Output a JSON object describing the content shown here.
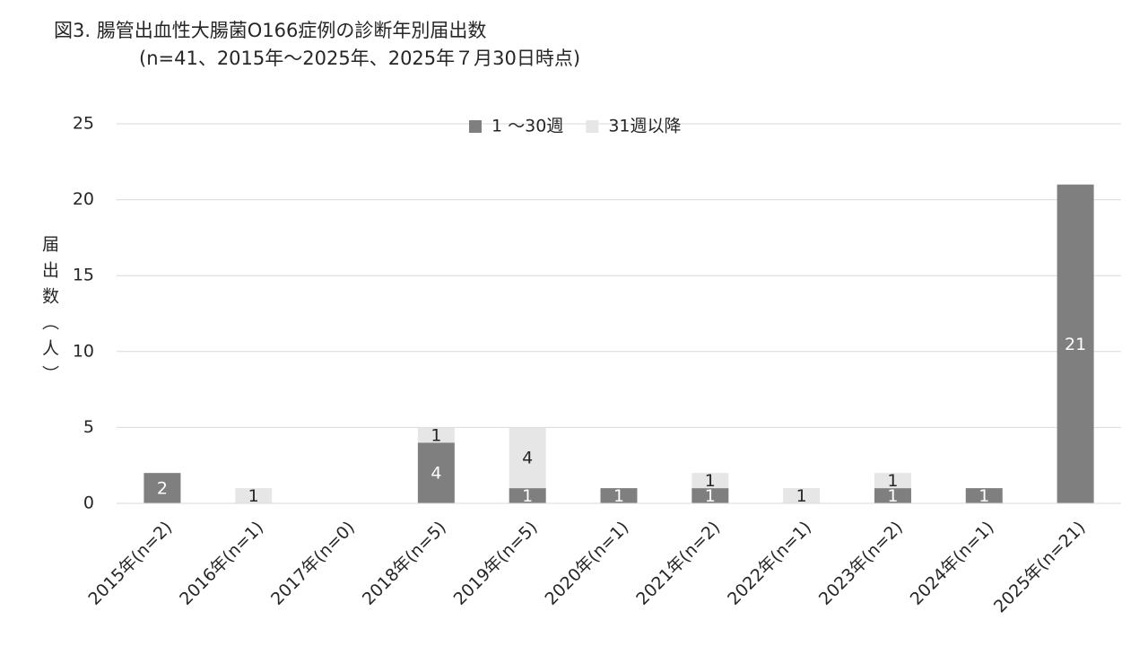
{
  "chart_data": {
    "type": "stacked-bar",
    "title": "図3. 腸管出血性大腸菌O166症例の診断年別届出数",
    "subtitle": "(n=41、2015年～2025年、2025年７月30日時点)",
    "y_label": "届出数（人）",
    "categories": [
      "2015年(n=2)",
      "2016年(n=1)",
      "2017年(n=0)",
      "2018年(n=5)",
      "2019年(n=5)",
      "2020年(n=1)",
      "2021年(n=2)",
      "2022年(n=1)",
      "2023年(n=2)",
      "2024年(n=1)",
      "2025年(n=21)"
    ],
    "series": [
      {
        "name": "1 ～30週",
        "color": "#7f7f7f",
        "values": [
          2,
          0,
          0,
          4,
          1,
          1,
          1,
          0,
          1,
          1,
          21
        ]
      },
      {
        "name": "31週以降",
        "color": "#e7e6e6",
        "values": [
          0,
          1,
          0,
          1,
          4,
          0,
          1,
          1,
          1,
          0,
          0
        ]
      }
    ],
    "ylim": [
      0,
      25
    ],
    "yticks": [
      0,
      5,
      10,
      15,
      20,
      25
    ],
    "grid": true,
    "legend": "top"
  }
}
